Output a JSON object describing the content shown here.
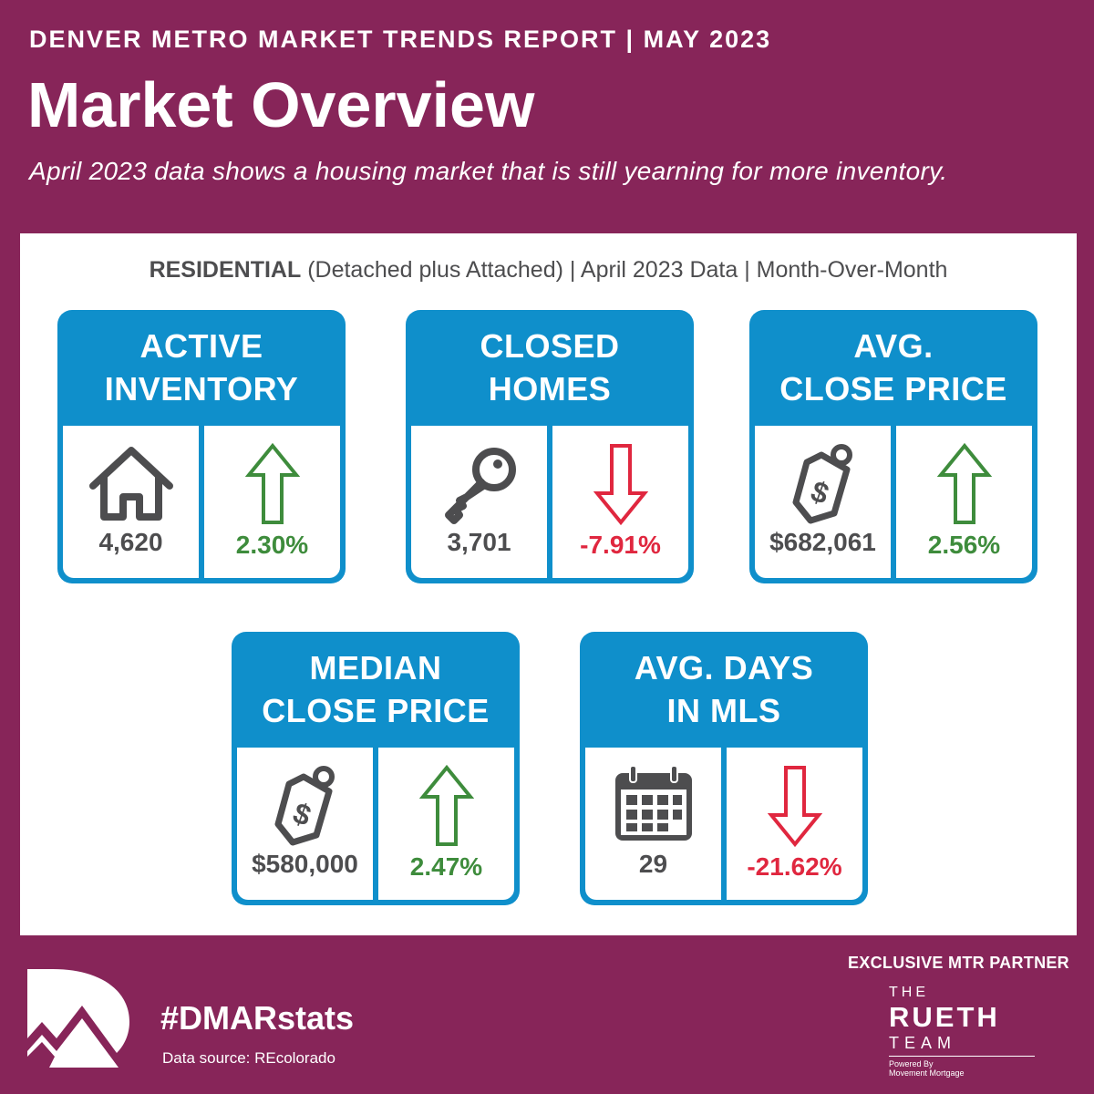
{
  "header": {
    "kicker": "DENVER METRO MARKET TRENDS REPORT  |  MAY 2023",
    "title": "Market Overview",
    "subtitle": "April 2023 data shows a housing market that is still yearning for more inventory."
  },
  "residential": {
    "bold": "RESIDENTIAL",
    "rest": " (Detached plus Attached) | April 2023 Data | Month-Over-Month"
  },
  "cards": [
    {
      "line1": "ACTIVE",
      "line2": "INVENTORY",
      "icon": "house-icon",
      "value": "4,620",
      "change": "2.30%",
      "direction": "up"
    },
    {
      "line1": "CLOSED",
      "line2": "HOMES",
      "icon": "key-icon",
      "value": "3,701",
      "change": "-7.91%",
      "direction": "down"
    },
    {
      "line1": "AVG.",
      "line2": "CLOSE PRICE",
      "icon": "price-tag-icon",
      "value": "$682,061",
      "change": "2.56%",
      "direction": "up"
    },
    {
      "line1": "MEDIAN",
      "line2": "CLOSE PRICE",
      "icon": "price-tag-icon",
      "value": "$580,000",
      "change": "2.47%",
      "direction": "up"
    },
    {
      "line1": "AVG. DAYS",
      "line2": "IN MLS",
      "icon": "calendar-icon",
      "value": "29",
      "change": "-21.62%",
      "direction": "down"
    }
  ],
  "footer": {
    "hashtag": "#DMARstats",
    "source": "Data source: REcolorado",
    "partner_label": "EXCLUSIVE MTR PARTNER",
    "partner_the": "THE",
    "partner_name": "RUETH",
    "partner_team": "TEAM",
    "partner_powered": "Powered By",
    "partner_company": "Movement Mortgage"
  },
  "colors": {
    "background": "#872559",
    "card_blue": "#0f8fcb",
    "up_green": "#3e8c3c",
    "down_red": "#e0273f",
    "text_gray": "#4d4d4f"
  }
}
